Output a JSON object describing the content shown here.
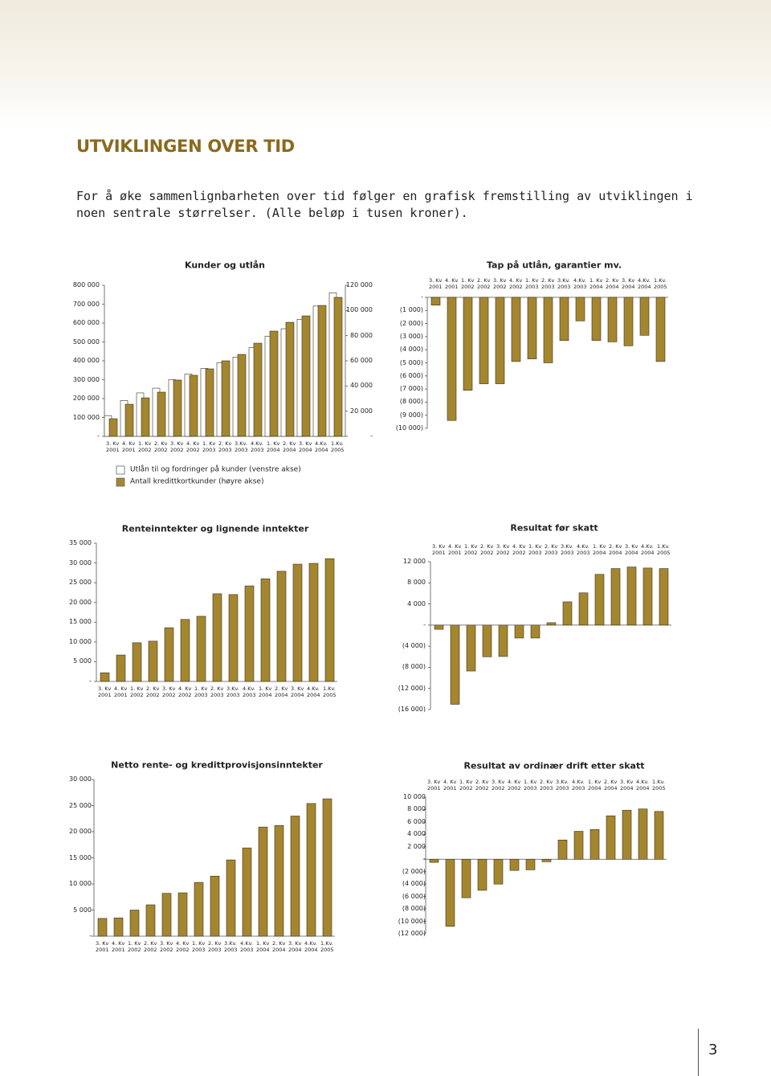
{
  "header": {
    "title": "UTVIKLINGEN OVER TID",
    "intro": "For å øke sammenlignbarheten over tid følger en grafisk fremstilling av utviklingen i noen sentrale størrelser. (Alle beløp i tusen kroner)."
  },
  "chart_data": [
    {
      "type": "bar",
      "title": "Kunder og utlån",
      "categories": [
        "3. Kv\n2001",
        "4. Kv\n2001",
        "1. Kv\n2002",
        "2. Kv\n2002",
        "3. Kv\n2002",
        "4. Kv\n2002",
        "1. Kv\n2003",
        "2. Kv\n2003",
        "3.Kv.\n2003",
        "4.Kv.\n2003",
        "1. Kv\n2004",
        "2. Kv\n2004",
        "3. Kv\n2004",
        "4.Kv.\n2004",
        "1.Kv.\n2005"
      ],
      "series": [
        {
          "name": "Utlån til og fordringer på kunder (venstre akse)",
          "color": "#ffffff",
          "values": [
            110000,
            190000,
            230000,
            255000,
            300000,
            330000,
            360000,
            390000,
            420000,
            470000,
            530000,
            570000,
            620000,
            690000,
            760000
          ]
        },
        {
          "name": "Antall kredittkortkunder (høyre akse)",
          "color": "#a4862f",
          "axis": "y2",
          "values": [
            14000,
            25500,
            30600,
            35100,
            44700,
            48500,
            53600,
            60000,
            65100,
            74000,
            83600,
            90600,
            95700,
            104000,
            110400
          ]
        }
      ],
      "ylim": [
        0,
        800000
      ],
      "yticks": [
        {
          "value": 0,
          "label": "-"
        },
        {
          "value": 100000,
          "label": "100 000"
        },
        {
          "value": 200000,
          "label": "200 000"
        },
        {
          "value": 300000,
          "label": "300 000"
        },
        {
          "value": 400000,
          "label": "400 000"
        },
        {
          "value": 500000,
          "label": "500 000"
        },
        {
          "value": 600000,
          "label": "600 000"
        },
        {
          "value": 700000,
          "label": "700 000"
        },
        {
          "value": 800000,
          "label": "800 000"
        }
      ],
      "y2lim": [
        0,
        120000
      ],
      "y2ticks": [
        {
          "value": 0,
          "label": "-"
        },
        {
          "value": 20000,
          "label": "20 000"
        },
        {
          "value": 40000,
          "label": "40 000"
        },
        {
          "value": 60000,
          "label": "60 000"
        },
        {
          "value": 80000,
          "label": "80 000"
        },
        {
          "value": 100000,
          "label": "100 000"
        },
        {
          "value": 120000,
          "label": "120 000"
        }
      ]
    },
    {
      "type": "bar",
      "title": "Tap på utlån, garantier mv.",
      "color": "#a4862f",
      "categories": [
        "3. Kv\n2001",
        "4. Kv\n2001",
        "1. Kv\n2002",
        "2. Kv\n2002",
        "3. Kv\n2002",
        "4. Kv\n2002",
        "1. Kv\n2003",
        "2. Kv\n2003",
        "3.Kv.\n2003",
        "4.Kv.\n2003",
        "1. Kv\n2004",
        "2. Kv\n2004",
        "3. Kv\n2004",
        "4.Kv.\n2004",
        "1.Kv.\n2005"
      ],
      "values": [
        -600,
        -9400,
        -7100,
        -6600,
        -6600,
        -4900,
        -4700,
        -5000,
        -3300,
        -1800,
        -3300,
        -3400,
        -3700,
        -2900,
        -4900
      ],
      "ylim": [
        -10000,
        0
      ],
      "yticks": [
        {
          "value": 0,
          "label": "-"
        },
        {
          "value": -1000,
          "label": "(1 000)"
        },
        {
          "value": -2000,
          "label": "(2 000)"
        },
        {
          "value": -3000,
          "label": "(3 000)"
        },
        {
          "value": -4000,
          "label": "(4 000)"
        },
        {
          "value": -5000,
          "label": "(5 000)"
        },
        {
          "value": -6000,
          "label": "(6 000)"
        },
        {
          "value": -7000,
          "label": "(7 000)"
        },
        {
          "value": -8000,
          "label": "(8 000)"
        },
        {
          "value": -9000,
          "label": "(9 000)"
        },
        {
          "value": -10000,
          "label": "(10 000)"
        }
      ]
    },
    {
      "type": "bar",
      "title": "Renteinntekter og lignende inntekter",
      "color": "#a4862f",
      "categories": [
        "3. Kv\n2001",
        "4. Kv\n2001",
        "1. Kv\n2002",
        "2. Kv\n2002",
        "3. Kv\n2002",
        "4. Kv\n2002",
        "1. Kv\n2003",
        "2. Kv\n2003",
        "3.Kv.\n2003",
        "4.Kv.\n2003",
        "1. Kv\n2004",
        "2. Kv\n2004",
        "3. Kv\n2004",
        "4.Kv.\n2004",
        "1.Kv.\n2005"
      ],
      "values": [
        2200,
        6700,
        9800,
        10200,
        13600,
        15700,
        16500,
        22200,
        22000,
        24200,
        26000,
        27900,
        29700,
        29900,
        31100
      ],
      "ylim": [
        0,
        35000
      ],
      "yticks": [
        {
          "value": 0,
          "label": "-"
        },
        {
          "value": 5000,
          "label": "5 000"
        },
        {
          "value": 10000,
          "label": "10 000"
        },
        {
          "value": 15000,
          "label": "15 000"
        },
        {
          "value": 20000,
          "label": "20 000"
        },
        {
          "value": 25000,
          "label": "25 000"
        },
        {
          "value": 30000,
          "label": "30 000"
        },
        {
          "value": 35000,
          "label": "35 000"
        }
      ]
    },
    {
      "type": "bar",
      "title": "Resultat  før skatt",
      "color": "#a4862f",
      "categories": [
        "3. Kv\n2001",
        "4. Kv\n2001",
        "1. Kv\n2002",
        "2. Kv\n2002",
        "3. Kv\n2002",
        "4. Kv\n2002",
        "1. Kv\n2003",
        "2. Kv\n2003",
        "3.Kv.\n2003",
        "4.Kv.\n2003",
        "1. Kv\n2004",
        "2. Kv\n2004",
        "3. Kv\n2004",
        "4.Kv.\n2004",
        "1.Kv.\n2005"
      ],
      "values": [
        -800,
        -15000,
        -8700,
        -6000,
        -5950,
        -2450,
        -2450,
        450,
        4400,
        6100,
        9600,
        10700,
        11000,
        10800,
        10700
      ],
      "ylim": [
        -16000,
        12000
      ],
      "yticks": [
        {
          "value": 12000,
          "label": "12 000"
        },
        {
          "value": 8000,
          "label": "8 000"
        },
        {
          "value": 4000,
          "label": "4 000"
        },
        {
          "value": 0,
          "label": "-"
        },
        {
          "value": -4000,
          "label": "(4 000)"
        },
        {
          "value": -8000,
          "label": "(8 000)"
        },
        {
          "value": -12000,
          "label": "(12 000)"
        },
        {
          "value": -16000,
          "label": "(16 000)"
        }
      ]
    },
    {
      "type": "bar",
      "title": "Netto rente- og kredittprovisjonsinntekter",
      "color": "#a4862f",
      "categories": [
        "3. Kv\n2001",
        "4. Kv\n2001",
        "1. Kv\n2002",
        "2. Kv\n2002",
        "3. Kv\n2002",
        "4. Kv\n2002",
        "1. Kv\n2003",
        "2. Kv\n2003",
        "3.Kv.\n2003",
        "4.Kv.\n2003",
        "1. Kv\n2004",
        "2. Kv\n2004",
        "3. Kv\n2004",
        "4.Kv.\n2004",
        "1.Kv.\n2005"
      ],
      "values": [
        3400,
        3500,
        5000,
        6000,
        8200,
        8300,
        10300,
        11500,
        14600,
        16900,
        20900,
        21200,
        23000,
        25400,
        26300
      ],
      "ylim": [
        0,
        30000
      ],
      "yticks": [
        {
          "value": 0,
          "label": "-"
        },
        {
          "value": 5000,
          "label": "5 000"
        },
        {
          "value": 10000,
          "label": "10 000"
        },
        {
          "value": 15000,
          "label": "15 000"
        },
        {
          "value": 20000,
          "label": "20 000"
        },
        {
          "value": 25000,
          "label": "25 000"
        },
        {
          "value": 30000,
          "label": "30 000"
        }
      ]
    },
    {
      "type": "bar",
      "title": "Resultat av ordinær drift etter skatt",
      "color": "#a4862f",
      "categories": [
        "3. Kv\n2001",
        "4. Kv\n2001",
        "1. Kv\n2002",
        "2. Kv\n2002",
        "3. Kv\n2002",
        "4. Kv\n2002",
        "1. Kv\n2003",
        "2. Kv\n2003",
        "3.Kv.\n2003",
        "4.Kv.\n2003",
        "1. Kv\n2004",
        "2. Kv\n2004",
        "3. Kv\n2004",
        "4.Kv.\n2004",
        "1.Kv.\n2005"
      ],
      "values": [
        -500,
        -10800,
        -6200,
        -5000,
        -4000,
        -1800,
        -1700,
        -400,
        3100,
        4500,
        4800,
        7000,
        7900,
        8100,
        7700
      ],
      "ylim": [
        -12000,
        10000
      ],
      "yticks": [
        {
          "value": 10000,
          "label": "10 000"
        },
        {
          "value": 8000,
          "label": "8 000"
        },
        {
          "value": 6000,
          "label": "6 000"
        },
        {
          "value": 4000,
          "label": "4 000"
        },
        {
          "value": 2000,
          "label": "2 000"
        },
        {
          "value": 0,
          "label": "-"
        },
        {
          "value": -2000,
          "label": "(2 000)"
        },
        {
          "value": -4000,
          "label": "(4 000)"
        },
        {
          "value": -6000,
          "label": "(6 000)"
        },
        {
          "value": -8000,
          "label": "(8 000)"
        },
        {
          "value": -10000,
          "label": "(10 000)"
        },
        {
          "value": -12000,
          "label": "(12 000)"
        }
      ]
    }
  ],
  "page_number": 3
}
